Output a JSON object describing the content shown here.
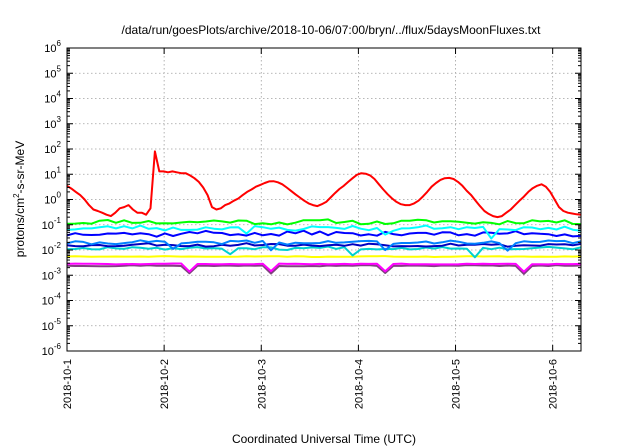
{
  "chart_data": {
    "type": "line",
    "title": "/data/run/goesPlots/archive/2018-10-06/07:00/bryn/../flux/5daysMoonFluxes.txt",
    "xlabel": "Coordinated Universal Time (UTC)",
    "ylabel": {
      "prefix": "protons/cm",
      "superscript": "2",
      "suffix": "-s-sr-MeV"
    },
    "y_scale": "log",
    "ylim": [
      1e-06,
      1000000.0
    ],
    "y_tick_exponents": [
      -6,
      -5,
      -4,
      -3,
      -2,
      -1,
      0,
      1,
      2,
      3,
      4,
      5,
      6
    ],
    "y_tick_base": "10",
    "xlim": [
      "2018-10-01T00:00",
      "2018-10-06T07:00"
    ],
    "x_ticks": [
      "2018-10-1",
      "2018-10-2",
      "2018-10-3",
      "2018-10-4",
      "2018-10-5",
      "2018-10-6"
    ],
    "grid": true,
    "legend": "none",
    "time_step_hours": 2,
    "series": [
      {
        "color": "#ff0000",
        "values": [
          3.5,
          2.7,
          2.0,
          1.5,
          1.0,
          0.6,
          0.4,
          0.35,
          0.3,
          0.25,
          0.22,
          0.3,
          0.45,
          0.5,
          0.6,
          0.4,
          0.3,
          0.3,
          0.25,
          0.45,
          80,
          13,
          13,
          12,
          13,
          12,
          11,
          11,
          9,
          7,
          5,
          3,
          1.5,
          0.5,
          0.4,
          0.45,
          0.6,
          0.7,
          0.9,
          1.1,
          1.5,
          2.0,
          2.5,
          3.2,
          3.8,
          4.5,
          5.2,
          5.3,
          4.8,
          4.0,
          3.0,
          2.2,
          1.6,
          1.2,
          0.9,
          0.7,
          0.6,
          0.55,
          0.65,
          0.8,
          1.2,
          1.8,
          2.6,
          3.5,
          5.0,
          7.0,
          9.5,
          11,
          10.5,
          9.0,
          6.5,
          4.0,
          2.5,
          1.6,
          1.1,
          0.8,
          0.65,
          0.6,
          0.6,
          0.7,
          0.9,
          1.3,
          2.0,
          3.2,
          4.5,
          6.0,
          7.0,
          7.2,
          6.5,
          5.0,
          3.5,
          2.2,
          1.5,
          0.9,
          0.55,
          0.35,
          0.27,
          0.22,
          0.2,
          0.22,
          0.3,
          0.4,
          0.6,
          0.9,
          1.3,
          2.0,
          2.8,
          3.5,
          4.0,
          3.2,
          2.0,
          1.0,
          0.5,
          0.35,
          0.3,
          0.28,
          0.26,
          0.25
        ]
      },
      {
        "color": "#00ff00",
        "base": 0.13,
        "noise": 0.35,
        "wobble": 0.08,
        "seed": 11
      },
      {
        "color": "#00ffff",
        "base": 0.075,
        "noise": 0.4,
        "wobble": 0.08,
        "seed": 23,
        "dips": [
          0.35,
          0.62,
          0.82
        ]
      },
      {
        "color": "#0000ff",
        "base": 0.045,
        "noise": 0.4,
        "wobble": 0.1,
        "seed": 37
      },
      {
        "color": "#0080ff",
        "base": 0.02,
        "noise": 0.3,
        "wobble": 0.07,
        "seed": 41,
        "dips": [
          0.21,
          0.4,
          0.62,
          0.86
        ]
      },
      {
        "color": "#0000c0",
        "base": 0.016,
        "noise": 0.25,
        "wobble": 0.06,
        "seed": 53
      },
      {
        "color": "#00d0d0",
        "base": 0.012,
        "noise": 0.25,
        "wobble": 0.05,
        "seed": 67,
        "dips": [
          0.32,
          0.55,
          0.79
        ]
      },
      {
        "color": "#ffff00",
        "base": 0.0055,
        "noise": 0.05,
        "wobble": 0.02,
        "seed": 71
      },
      {
        "color": "#ff00ff",
        "base": 0.0028,
        "noise": 0.05,
        "wobble": 0.02,
        "seed": 83,
        "dips": [
          0.12,
          0.24,
          0.4,
          0.62,
          0.89
        ]
      },
      {
        "color": "#804080",
        "base": 0.0024,
        "noise": 0.08,
        "wobble": 0.02,
        "seed": 97,
        "dips": [
          0.12,
          0.24,
          0.4,
          0.62,
          0.89
        ]
      }
    ]
  }
}
